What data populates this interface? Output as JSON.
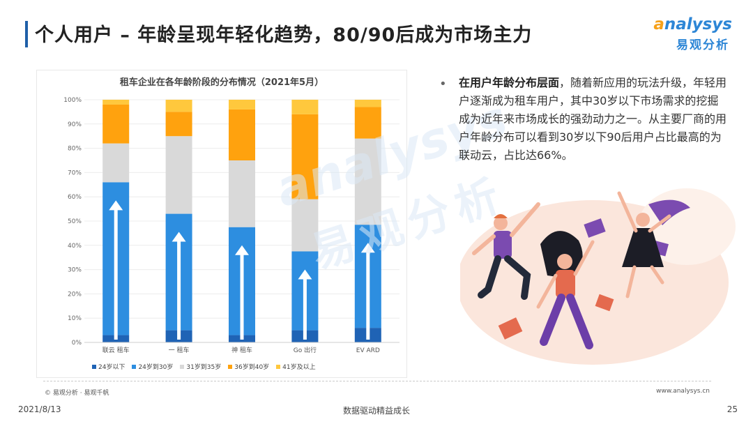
{
  "header": {
    "title": "个人用户 – 年龄呈现年轻化趋势，80/90后成为市场主力",
    "logo_en_prefix": "a",
    "logo_en_rest": "nalysys",
    "logo_cn": "易观分析"
  },
  "watermark": {
    "en": "analysys",
    "cn": "易观分析"
  },
  "bullet": {
    "marker": "•",
    "bold": "在用户年龄分布层面",
    "text": "，随着新应用的玩法升级，年轻用户逐渐成为租车用户，其中30岁以下市场需求的挖掘成为近年来市场成长的强劲动力之一。从主要厂商的用户年龄分布可以看到30岁以下90后用户占比最高的为联动云，占比达66%。"
  },
  "chart_data": {
    "type": "bar",
    "stacked": true,
    "title": "租车企业在各年龄阶段的分布情况（2021年5月）",
    "categories": [
      "联动云租车",
      "一嗨租车",
      "神州租车",
      "GoFun出行",
      "EVCARD"
    ],
    "category_labels": [
      "联云 租车",
      "一 租车",
      "神 租车",
      "Go 出行",
      "EV ARD"
    ],
    "ylim": [
      0,
      100
    ],
    "y_ticks": [
      "0%",
      "10%",
      "20%",
      "30%",
      "40%",
      "50%",
      "60%",
      "70%",
      "80%",
      "90%",
      "100%"
    ],
    "series": [
      {
        "name": "24岁以下",
        "color": "#1f63b5",
        "values": [
          3,
          5,
          3,
          5,
          6
        ]
      },
      {
        "name": "24岁到30岁",
        "color": "#2d8ee0",
        "values": [
          63,
          48,
          44.5,
          32.5,
          42.5
        ]
      },
      {
        "name": "31岁到35岁",
        "color": "#d9d9d9",
        "values": [
          16,
          32,
          27.5,
          21.5,
          35.5
        ]
      },
      {
        "name": "36岁到40岁",
        "color": "#ffa20e",
        "values": [
          16,
          10,
          21,
          35,
          13
        ]
      },
      {
        "name": "41岁及以上",
        "color": "#ffc83d",
        "values": [
          2,
          5,
          4,
          6,
          3
        ]
      }
    ],
    "legend_position": "bottom",
    "grid": true
  },
  "footer": {
    "source": "© 易观分析 · 易观千帆",
    "website": "www.analysys.cn",
    "date": "2021/8/13",
    "slogan": "数据驱动精益成长",
    "page": "25"
  }
}
